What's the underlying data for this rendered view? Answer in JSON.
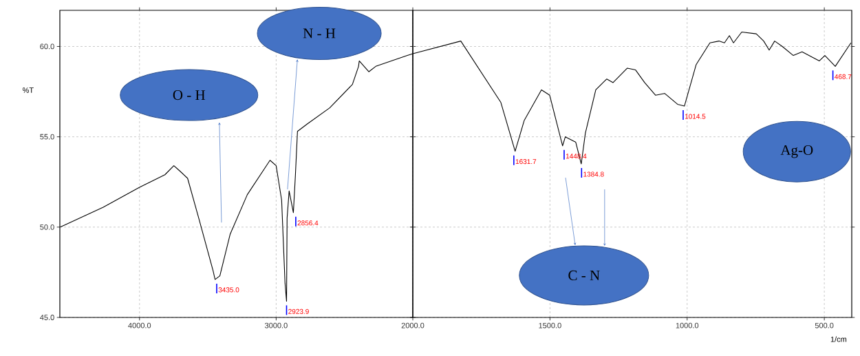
{
  "chart_data": [
    {
      "type": "line",
      "xlabel": null,
      "ylabel": "%T",
      "xlim": [
        4583,
        2000
      ],
      "ylim": [
        45,
        62
      ],
      "xticks": [
        {
          "value": 4000,
          "label": "4000.0"
        },
        {
          "value": 3000,
          "label": "3000.0"
        },
        {
          "value": 2000,
          "label": "2000.0"
        }
      ],
      "yticks": [
        {
          "value": 45,
          "label": "45.0"
        },
        {
          "value": 50,
          "label": "50.0"
        },
        {
          "value": 55,
          "label": "55.0"
        },
        {
          "value": 60,
          "label": "60.0"
        }
      ],
      "grid": true,
      "marker": "none",
      "line_style": "solid",
      "series": [
        {
          "color": "#000000",
          "x": [
            4580,
            4266,
            4000,
            3814,
            3749,
            3704,
            3648,
            3563,
            3462,
            3447,
            3412,
            3337,
            3211,
            3045,
            3000,
            2960,
            2935,
            2924,
            2920,
            2905,
            2874,
            2859,
            2844,
            2774,
            2608,
            2442,
            2397,
            2392,
            2322,
            2271,
            2040,
            2000
          ],
          "values": [
            50.0,
            51.1,
            52.2,
            52.9,
            53.4,
            53.1,
            52.7,
            50.4,
            47.6,
            47.1,
            47.3,
            49.6,
            51.8,
            53.7,
            53.4,
            51.5,
            46.9,
            45.9,
            50.5,
            52.0,
            50.8,
            52.9,
            55.3,
            55.7,
            56.6,
            57.9,
            58.9,
            59.2,
            58.6,
            58.9,
            59.5,
            59.6
          ]
        }
      ],
      "annotations": [
        {
          "text": "3435.0",
          "x": 3435.0,
          "y": 47.1
        },
        {
          "text": "2923.9",
          "x": 2923.9,
          "y": 45.9
        },
        {
          "text": "2856.4",
          "x": 2856.4,
          "y": 50.8
        },
        "O - H",
        "N - H"
      ]
    },
    {
      "type": "line",
      "xlabel": "1/cm",
      "xlim": [
        2000,
        400
      ],
      "ylim": [
        45,
        62
      ],
      "xticks": [
        {
          "value": 1500,
          "label": "1500.0"
        },
        {
          "value": 1000,
          "label": "1000.0"
        },
        {
          "value": 500,
          "label": "500.0"
        }
      ],
      "yticks": [
        45,
        50,
        55,
        60
      ],
      "tick_labels": "x",
      "grid": true,
      "marker": "none",
      "line_style": "solid",
      "series": [
        {
          "color": "#000000",
          "x": [
            2000,
            1825,
            1752,
            1679,
            1627,
            1594,
            1531,
            1501,
            1454,
            1444,
            1406,
            1386,
            1371,
            1333,
            1293,
            1270,
            1218,
            1188,
            1155,
            1115,
            1082,
            1035,
            1010,
            967,
            917,
            884,
            864,
            846,
            831,
            801,
            748,
            721,
            701,
            681,
            653,
            613,
            581,
            518,
            498,
            460,
            403
          ],
          "values": [
            59.6,
            60.3,
            58.6,
            56.9,
            54.2,
            55.9,
            57.6,
            57.3,
            54.5,
            55.0,
            54.7,
            53.5,
            55.2,
            57.6,
            58.2,
            58.0,
            58.8,
            58.7,
            58.0,
            57.3,
            57.4,
            56.8,
            56.7,
            59.0,
            60.2,
            60.3,
            60.2,
            60.6,
            60.2,
            60.8,
            60.7,
            60.3,
            59.8,
            60.3,
            60.0,
            59.5,
            59.7,
            59.2,
            59.5,
            58.9,
            60.2
          ]
        }
      ],
      "annotations": [
        {
          "text": "1631.7",
          "x": 1631.7,
          "y": 54.2
        },
        {
          "text": "1448.4",
          "x": 1448.4,
          "y": 54.5
        },
        {
          "text": "1384.8",
          "x": 1384.8,
          "y": 53.5
        },
        {
          "text": "1014.5",
          "x": 1014.5,
          "y": 56.7
        },
        {
          "text": "468.7",
          "x": 468.7,
          "y": 58.9
        },
        "C - N",
        "Ag-O"
      ]
    }
  ]
}
